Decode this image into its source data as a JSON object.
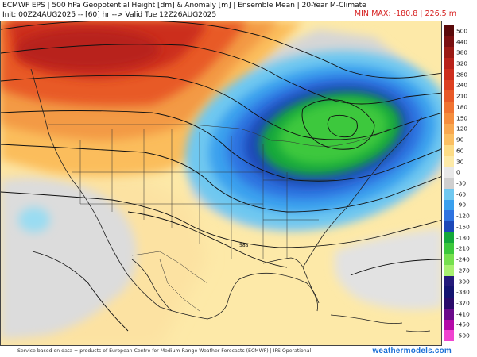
{
  "header": {
    "line1": "ECMWF EPS | 500 hPa Geopotential Height [dm] & Anomaly [m] | Ensemble Mean | 20-Year M-Climate",
    "line2": "Init: 00Z24AUG2025 -- [60] hr --> Valid Tue 12Z26AUG2025",
    "minmax_label": "MIN|MAX: -180.8 | 226.5 m",
    "minmax_color": "#d62020"
  },
  "colorbar": {
    "levels": [
      "500",
      "440",
      "380",
      "320",
      "280",
      "240",
      "210",
      "180",
      "150",
      "120",
      "90",
      "60",
      "30",
      "0",
      "-30",
      "-60",
      "-90",
      "-120",
      "-150",
      "-180",
      "-210",
      "-240",
      "-270",
      "-300",
      "-330",
      "-370",
      "-410",
      "-450",
      "-500"
    ],
    "colors": [
      "#5a0a0a",
      "#7a1010",
      "#9a1a14",
      "#b8221a",
      "#cc2e1e",
      "#dc4020",
      "#e85a28",
      "#f07432",
      "#f58e3e",
      "#f8a850",
      "#fbbf62",
      "#fddc86",
      "#fdeaa8",
      "#e8e8e8",
      "#cfcfcf",
      "#6fc8f0",
      "#3aa0ee",
      "#2f73e0",
      "#1c48b8",
      "#14a83a",
      "#3cc83c",
      "#76e04e",
      "#a8f070",
      "#241a7a",
      "#141470",
      "#2a0a6a",
      "#6a0a8a",
      "#b40aa8",
      "#f044d0"
    ]
  },
  "map": {
    "anomaly_min_m": -180.8,
    "anomaly_max_m": 226.5,
    "contour_label": "588"
  },
  "footer": {
    "credit": "Service based on data + products of European Centre for Medium-Range Weather Forecasts (ECMWF) | IFS Operational",
    "watermark": "weathermodels.com",
    "watermark_color": "#1a6fd6"
  }
}
